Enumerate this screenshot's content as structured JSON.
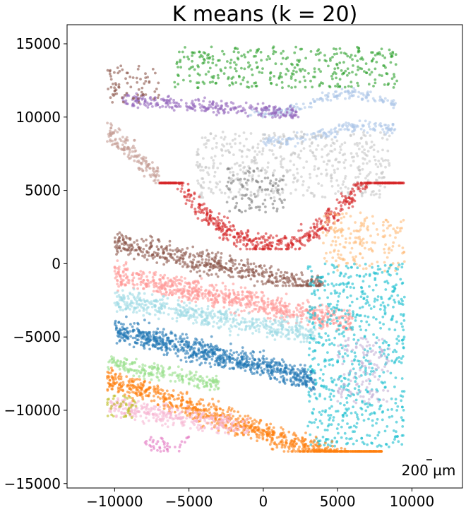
{
  "chart_data": {
    "type": "scatter",
    "title": "K means (k = 20)",
    "xlabel": "",
    "ylabel": "",
    "xlim": [
      -13200,
      13400
    ],
    "ylim": [
      -15300,
      16300
    ],
    "x_ticks": [
      -10000,
      -5000,
      0,
      5000,
      10000
    ],
    "y_ticks": [
      -15000,
      -10000,
      -5000,
      0,
      5000,
      10000,
      15000
    ],
    "x_tick_labels": [
      "−10000",
      "−5000",
      "0",
      "5000",
      "10000"
    ],
    "y_tick_labels": [
      "−15000",
      "−10000",
      "−5000",
      "0",
      "5000",
      "10000",
      "15000"
    ],
    "grid": false,
    "legend": "none",
    "scale_bar_label": "200 µm",
    "clusters": [
      {
        "cluster": 0,
        "color": "#aec7e8",
        "region": "upper dentate band",
        "x_range": [
          -1000,
          9000
        ],
        "y_range": [
          10000,
          12000
        ]
      },
      {
        "cluster": 1,
        "color": "#aec7e8",
        "region": "lower dentate band",
        "x_range": [
          0,
          9000
        ],
        "y_range": [
          7500,
          9800
        ]
      },
      {
        "cluster": 2,
        "color": "#2ca02c",
        "region": "top border",
        "x_range": [
          -6000,
          9000
        ],
        "y_range": [
          12000,
          14800
        ]
      },
      {
        "cluster": 3,
        "color": "#9467bd",
        "region": "upper left band",
        "x_range": [
          -9500,
          2500
        ],
        "y_range": [
          9000,
          11800
        ]
      },
      {
        "cluster": 4,
        "color": "#c49c94",
        "region": "left arm",
        "x_range": [
          -10500,
          -7000
        ],
        "y_range": [
          5000,
          10000
        ]
      },
      {
        "cluster": 5,
        "color": "#8c564b",
        "region": "top-left corner",
        "x_range": [
          -10500,
          -7000
        ],
        "y_range": [
          11000,
          13500
        ]
      },
      {
        "cluster": 6,
        "color": "#c7c7c7",
        "region": "center light grey",
        "x_range": [
          -4500,
          8500
        ],
        "y_range": [
          4500,
          9000
        ]
      },
      {
        "cluster": 7,
        "color": "#7f7f7f",
        "region": "center dark grey",
        "x_range": [
          -2500,
          1500
        ],
        "y_range": [
          3500,
          6500
        ]
      },
      {
        "cluster": 8,
        "color": "#d62728",
        "region": "red arc",
        "x_range": [
          -7000,
          9500
        ],
        "y_range": [
          1000,
          5500
        ]
      },
      {
        "cluster": 9,
        "color": "#8c564b",
        "region": "brown band",
        "x_range": [
          -10000,
          4000
        ],
        "y_range": [
          -1500,
          3000
        ]
      },
      {
        "cluster": 10,
        "color": "#ffbb78",
        "region": "right orange patch",
        "x_range": [
          4000,
          9500
        ],
        "y_range": [
          -500,
          3500
        ]
      },
      {
        "cluster": 11,
        "color": "#ff9896",
        "region": "pink band",
        "x_range": [
          -10000,
          6000
        ],
        "y_range": [
          -4500,
          1000
        ]
      },
      {
        "cluster": 12,
        "color": "#9edae5",
        "region": "light cyan stripe",
        "x_range": [
          -10000,
          3500
        ],
        "y_range": [
          -6000,
          -1500
        ]
      },
      {
        "cluster": 13,
        "color": "#1f77b4",
        "region": "blue band",
        "x_range": [
          -10000,
          3500
        ],
        "y_range": [
          -9500,
          -2500
        ]
      },
      {
        "cluster": 14,
        "color": "#17becf",
        "region": "cyan right region",
        "x_range": [
          3000,
          9500
        ],
        "y_range": [
          -12500,
          0
        ]
      },
      {
        "cluster": 15,
        "color": "#c5b0d5",
        "region": "lavender patch",
        "x_range": [
          5000,
          8500
        ],
        "y_range": [
          -9500,
          -5000
        ]
      },
      {
        "cluster": 16,
        "color": "#98df8a",
        "region": "light green band",
        "x_range": [
          -10500,
          -3000
        ],
        "y_range": [
          -9000,
          -5500
        ]
      },
      {
        "cluster": 17,
        "color": "#ff7f0e",
        "region": "orange band",
        "x_range": [
          -10500,
          8000
        ],
        "y_range": [
          -12800,
          -5500
        ]
      },
      {
        "cluster": 18,
        "color": "#f7b6d2",
        "region": "light pink band",
        "x_range": [
          -10500,
          -1000
        ],
        "y_range": [
          -12000,
          -8000
        ]
      },
      {
        "cluster": 19,
        "color": "#bcbd22",
        "region": "olive patch",
        "x_range": [
          -10500,
          -8500
        ],
        "y_range": [
          -10500,
          -9000
        ]
      },
      {
        "cluster": 20,
        "color": "#e377c2",
        "region": "bottom magenta specks",
        "x_range": [
          -8000,
          -5000
        ],
        "y_range": [
          -12800,
          -11800
        ]
      }
    ]
  }
}
